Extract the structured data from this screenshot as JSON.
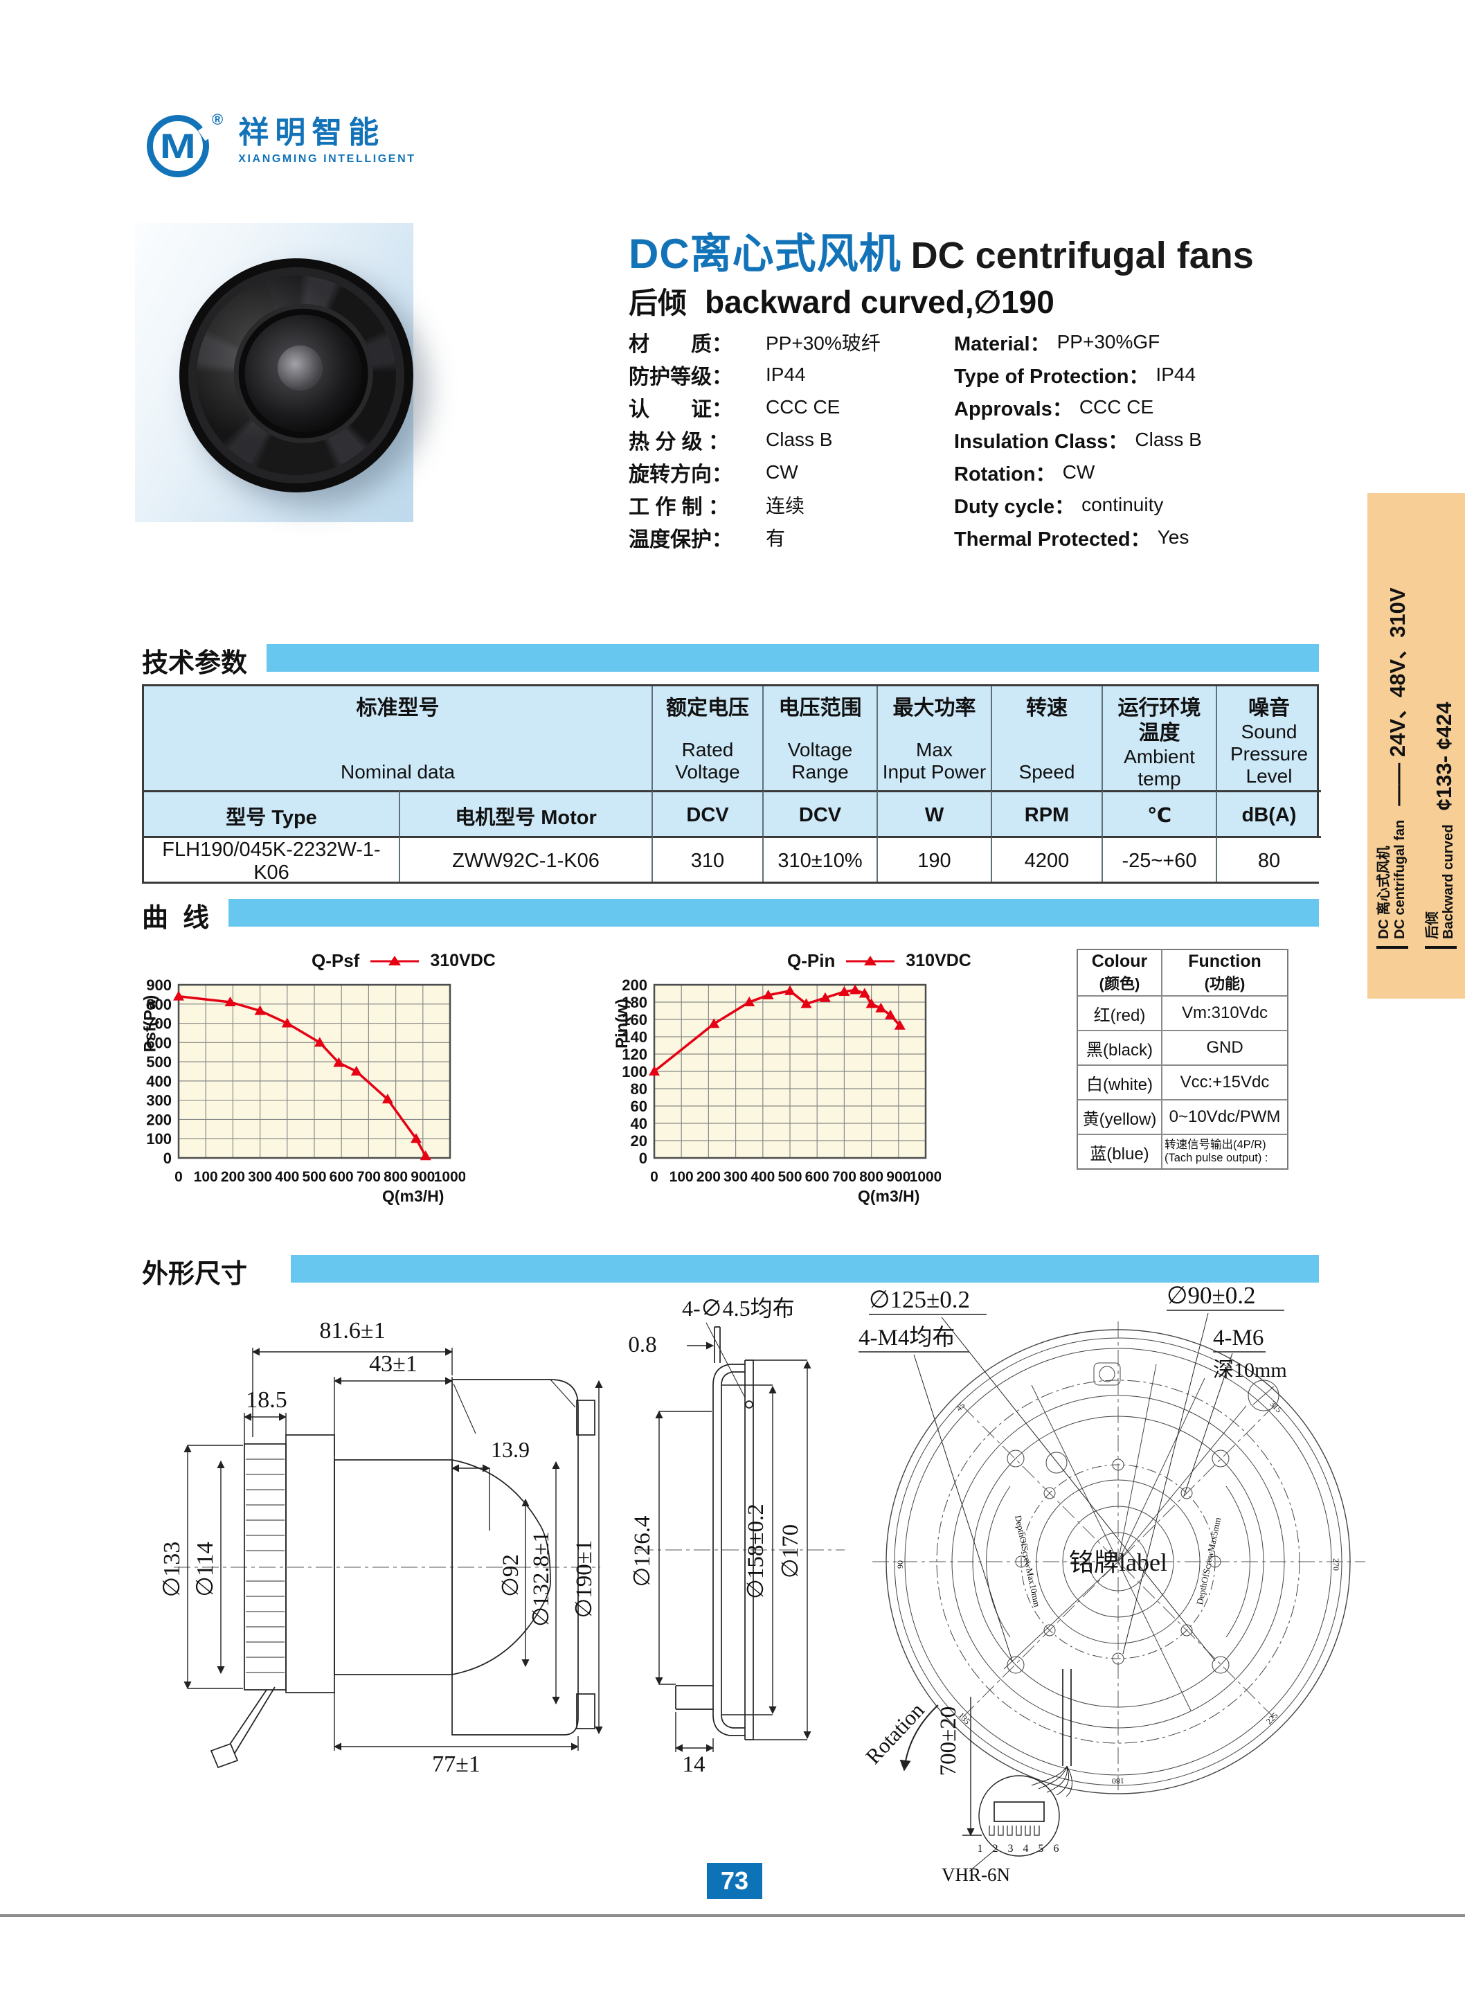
{
  "logo": {
    "monogram": "M",
    "reg": "®",
    "name_zh": "祥明智能",
    "name_en": "XIANGMING INTELLIGENT"
  },
  "title": {
    "zh": "DC离心式风机",
    "en": "DC centrifugal fans",
    "sub_zh": "后倾",
    "sub_en": "backward curved,∅190"
  },
  "specs": [
    {
      "zh_label": "材　　质：",
      "zh_value": "PP+30%玻纤",
      "en_label": "Material：",
      "en_value": "PP+30%GF"
    },
    {
      "zh_label": "防护等级：",
      "zh_value": "IP44",
      "en_label": "Type of Protection：",
      "en_value": "IP44"
    },
    {
      "zh_label": "认　　证：",
      "zh_value": "CCC CE",
      "en_label": "Approvals：",
      "en_value": "CCC CE"
    },
    {
      "zh_label": "热 分 级 ：",
      "zh_value": "Class B",
      "en_label": "Insulation Class：",
      "en_value": "Class B"
    },
    {
      "zh_label": "旋转方向：",
      "zh_value": "CW",
      "en_label": "Rotation：",
      "en_value": "CW"
    },
    {
      "zh_label": "工 作 制 ：",
      "zh_value": "连续",
      "en_label": "Duty cycle：",
      "en_value": "continuity"
    },
    {
      "zh_label": "温度保护：",
      "zh_value": "有",
      "en_label": "Thermal Protected：",
      "en_value": "Yes"
    }
  ],
  "sections": {
    "tech": "技术参数",
    "curve": "曲  线",
    "dims": "外形尺寸"
  },
  "tech_table": {
    "merged": {
      "zh": "标准型号",
      "en": "Nominal data"
    },
    "cols": [
      {
        "zh": "额定电压",
        "en": "Rated\nVoltage"
      },
      {
        "zh": "电压范围",
        "en": "Voltage\nRange"
      },
      {
        "zh": "最大功率",
        "en": "Max\nInput Power"
      },
      {
        "zh": "转速",
        "en": "Speed"
      },
      {
        "zh": "运行环境\n温度",
        "en": "Ambient\ntemp"
      },
      {
        "zh": "噪音",
        "en": "Sound\nPressure\nLevel"
      }
    ],
    "sub": [
      "型号 Type",
      "电机型号 Motor",
      "DCV",
      "DCV",
      "W",
      "RPM",
      "℃",
      "dB(A)"
    ],
    "row": [
      "FLH190/045K-2232W-1-K06",
      "ZWW92C-1-K06",
      "310",
      "310±10%",
      "190",
      "4200",
      "-25~+60",
      "80"
    ]
  },
  "chart_data": [
    {
      "type": "line",
      "title": "Q-Psf",
      "xlabel": "Q(m3/H)",
      "ylabel": "Psf(Pa)",
      "xlim": [
        0,
        1000
      ],
      "ylim": [
        0,
        900
      ],
      "xticks": [
        0,
        100,
        200,
        300,
        400,
        500,
        600,
        700,
        800,
        900,
        1000
      ],
      "yticks": [
        0,
        100,
        200,
        300,
        400,
        500,
        600,
        700,
        800,
        900
      ],
      "grid": true,
      "legend_position": "top",
      "plot_bg": "#fbf7e0",
      "series": [
        {
          "name": "310VDC",
          "color": "#e60014",
          "marker": "triangle",
          "x": [
            0,
            190,
            300,
            400,
            520,
            590,
            655,
            770,
            875,
            910
          ],
          "y": [
            840,
            810,
            765,
            700,
            600,
            495,
            450,
            305,
            100,
            10
          ]
        }
      ]
    },
    {
      "type": "line",
      "title": "Q-Pin",
      "xlabel": "Q(m3/H)",
      "ylabel": "Pin(w)",
      "xlim": [
        0,
        1000
      ],
      "ylim": [
        0,
        200
      ],
      "xticks": [
        0,
        100,
        200,
        300,
        400,
        500,
        600,
        700,
        800,
        900,
        1000
      ],
      "yticks": [
        0,
        20,
        40,
        60,
        80,
        100,
        120,
        140,
        160,
        180,
        200
      ],
      "grid": true,
      "legend_position": "top",
      "plot_bg": "#fbf7e0",
      "series": [
        {
          "name": "310VDC",
          "color": "#e60014",
          "marker": "triangle",
          "x": [
            0,
            220,
            350,
            420,
            500,
            560,
            630,
            700,
            740,
            775,
            800,
            835,
            870,
            905
          ],
          "y": [
            100,
            155,
            180,
            188,
            193,
            178,
            185,
            192,
            194,
            190,
            178,
            173,
            165,
            153
          ]
        }
      ]
    }
  ],
  "wire_table": {
    "header": {
      "col1_en": "Colour",
      "col1_zh": "(颜色)",
      "col2_en": "Function",
      "col2_zh": "(功能)"
    },
    "rows": [
      {
        "colour": "红(red)",
        "function": "Vm:310Vdc"
      },
      {
        "colour": "黑(black)",
        "function": "GND"
      },
      {
        "colour": "白(white)",
        "function": "Vcc:+15Vdc"
      },
      {
        "colour": "黄(yellow)",
        "function": "0~10Vdc/PWM"
      },
      {
        "colour": "蓝(blue)",
        "function": "转速信号输出(4P/R)\n(Tach pulse output) :"
      }
    ]
  },
  "dims": {
    "side": {
      "top_width": "81.6±1",
      "hub_width": "43±1",
      "inlet_depth": "18.5",
      "dia133": "∅133",
      "dia114": "∅114",
      "gap": "13.9",
      "dia92": "∅92",
      "dia1328": "∅132.8±1",
      "dia190": "∅190±1",
      "bottom_width": "77±1"
    },
    "ring": {
      "holes": "4-∅4.5均布",
      "thickness": "0.8",
      "dia1264": "∅126.4",
      "dia158": "∅158±0.2",
      "dia170": "∅170",
      "lip": "14"
    },
    "front": {
      "pcd125": "∅125±0.2",
      "m4": "4-M4均布",
      "pcd90": "∅90±0.2",
      "m6": "4-M6",
      "m6_depth": "深10mm",
      "nameplate": "铭牌label",
      "rotation": "Rotation",
      "cable_len": "700±20",
      "connector": "VHR-6N",
      "pins": "1 2 3 4 5 6",
      "arc_note_left": "DepthOfScrewMax10mm",
      "arc_note_right": "DepthOfScrewMax5mm",
      "angles": [
        "45",
        "90",
        "135",
        "180",
        "225",
        "270",
        "315"
      ]
    }
  },
  "sidebar": {
    "group1_zh": "DC 离心式风机",
    "group1_en": "DC centrifugal fan",
    "group1_value": "—— 24V、48V、310V",
    "group2_zh": "后倾",
    "group2_en": "Backward curved",
    "group2_value": "¢133- ¢424"
  },
  "footer": {
    "page": "73"
  }
}
